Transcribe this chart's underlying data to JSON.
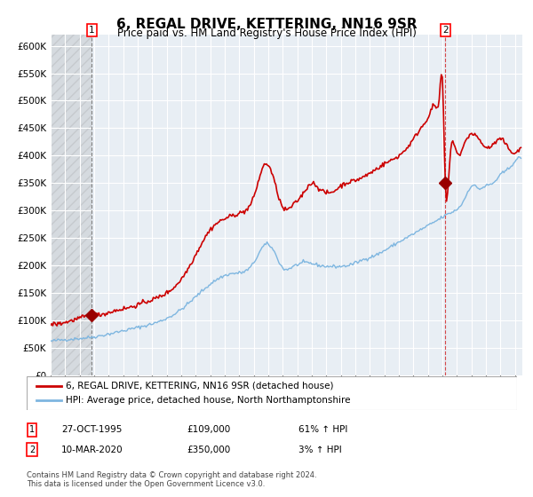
{
  "title": "6, REGAL DRIVE, KETTERING, NN16 9SR",
  "subtitle": "Price paid vs. HM Land Registry's House Price Index (HPI)",
  "legend_line1": "6, REGAL DRIVE, KETTERING, NN16 9SR (detached house)",
  "legend_line2": "HPI: Average price, detached house, North Northamptonshire",
  "table_row1": [
    "1",
    "27-OCT-1995",
    "£109,000",
    "61% ↑ HPI"
  ],
  "table_row2": [
    "2",
    "10-MAR-2020",
    "£350,000",
    "3% ↑ HPI"
  ],
  "footer": "Contains HM Land Registry data © Crown copyright and database right 2024.\nThis data is licensed under the Open Government Licence v3.0.",
  "hpi_color": "#7EB6E0",
  "price_color": "#CC0000",
  "marker_color": "#990000",
  "bg_color": "#E8EEF4",
  "grid_color": "#FFFFFF",
  "sale1_x": 1995.83,
  "sale1_y": 109000,
  "sale2_x": 2020.19,
  "sale2_y": 350000,
  "ylim": [
    0,
    620000
  ],
  "xlim_start": 1993.0,
  "xlim_end": 2025.5
}
